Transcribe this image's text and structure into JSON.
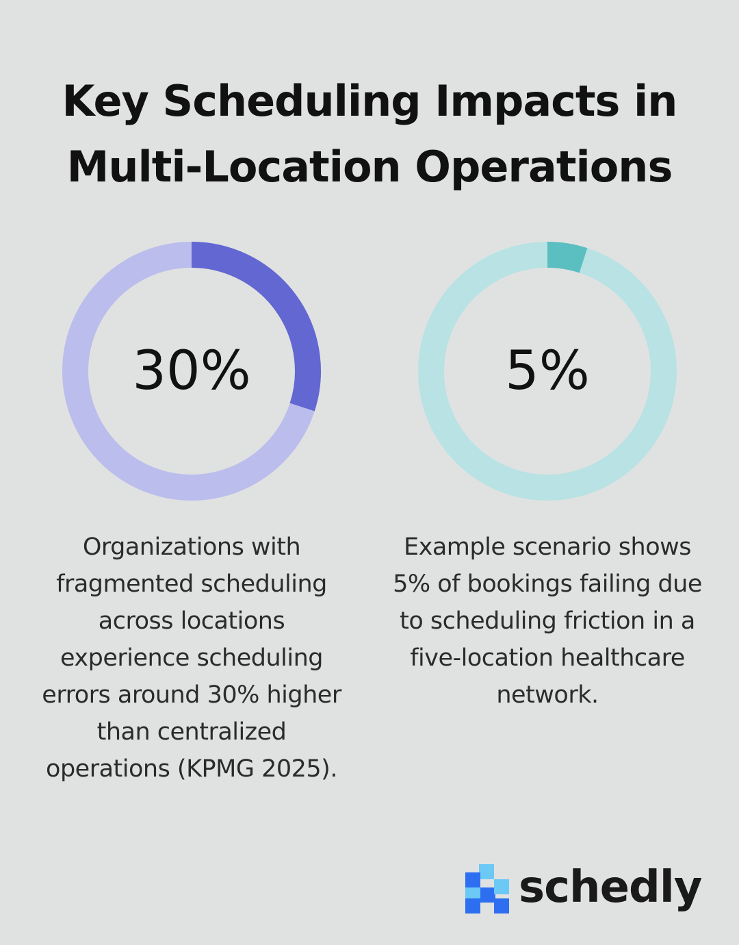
{
  "title": {
    "line1": "Key Scheduling Impacts in",
    "line2": "Multi-Location Operations"
  },
  "chart_data": [
    {
      "type": "pie",
      "subtype": "donut",
      "value_label": "30%",
      "values": [
        30,
        70
      ],
      "colors": {
        "filled": "#6267d2",
        "track": "#bbbdec"
      },
      "description_lines": [
        "Organizations with",
        "fragmented scheduling",
        "across locations",
        "experience scheduling",
        "errors around 30% higher",
        "than centralized",
        "operations (KPMG 2025)."
      ]
    },
    {
      "type": "pie",
      "subtype": "donut",
      "value_label": "5%",
      "values": [
        5,
        95
      ],
      "colors": {
        "filled": "#5bbfc2",
        "track": "#b8e2e3"
      },
      "description_lines": [
        "Example scenario shows",
        "5% of bookings failing due",
        "to scheduling friction in a",
        "five-location healthcare",
        "network."
      ]
    }
  ],
  "logo": {
    "text": "schedly",
    "colors": {
      "light": "#6cc8f5",
      "dark": "#2d6ff0"
    }
  }
}
